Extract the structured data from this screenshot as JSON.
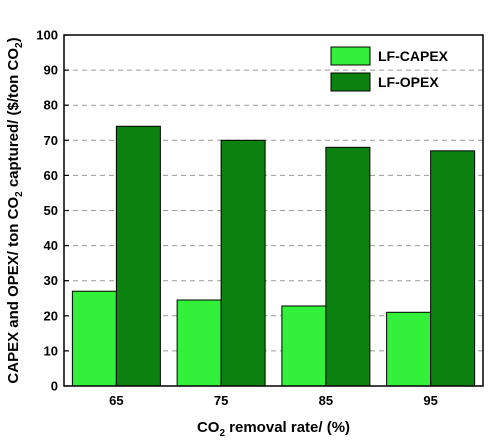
{
  "chart_data": {
    "type": "bar",
    "categories": [
      "65",
      "75",
      "85",
      "95"
    ],
    "series": [
      {
        "name": "LF-CAPEX",
        "values": [
          27.0,
          24.5,
          22.8,
          21.0
        ],
        "color": "#33f03a"
      },
      {
        "name": "LF-OPEX",
        "values": [
          74.0,
          70.0,
          68.0,
          67.0
        ],
        "color": "#0b820f"
      }
    ],
    "xlabel": {
      "main": "CO",
      "sub": "2",
      "rest": " removal rate/ (%)"
    },
    "ylabel": {
      "p1": "CAPEX and OPEX/ ton CO",
      "s1": "2",
      "p2": " captured/ ($/ton CO",
      "s2": "2",
      "p3": ")"
    },
    "ylim": [
      0,
      100
    ],
    "yticks": [
      0,
      10,
      20,
      30,
      40,
      50,
      60,
      70,
      80,
      90,
      100
    ],
    "grid": "horizontal dashed",
    "legend_position": "top-right"
  }
}
